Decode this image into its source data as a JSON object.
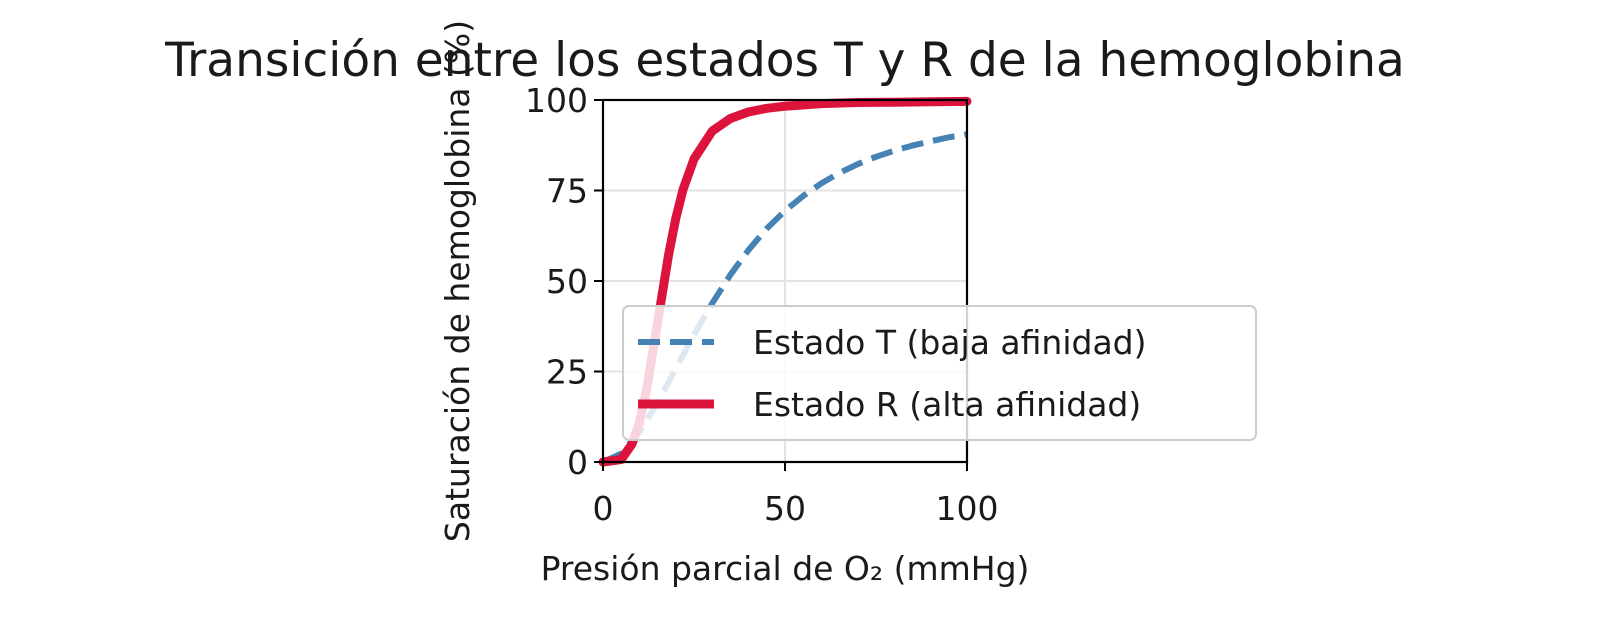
{
  "chart_data": {
    "type": "line",
    "title": "Transición entre los estados T y R de la hemoglobina",
    "xlabel": "Presión parcial de O₂ (mmHg)",
    "ylabel": "Saturación de hemoglobina (%)",
    "xlim": [
      0,
      100
    ],
    "ylim": [
      0,
      100
    ],
    "xticks": [
      0,
      50,
      100
    ],
    "yticks": [
      0,
      25,
      50,
      75,
      100
    ],
    "grid": true,
    "legend_position": "lower-right",
    "series": [
      {
        "name": "Estado T (baja afinidad)",
        "color": "#4682b4",
        "style": "dashed",
        "x": [
          0,
          5,
          10,
          15,
          20,
          25,
          30,
          35,
          40,
          45,
          50,
          55,
          60,
          65,
          70,
          75,
          80,
          85,
          90,
          95,
          100
        ],
        "y": [
          0,
          2.3,
          8.3,
          16.5,
          25.8,
          35.1,
          43.8,
          51.7,
          58.6,
          64.5,
          69.4,
          73.5,
          77.0,
          79.9,
          82.3,
          84.3,
          86.0,
          87.4,
          88.6,
          89.7,
          90.5
        ]
      },
      {
        "name": "Estado R (alta afinidad)",
        "color": "#dc143c",
        "style": "solid",
        "x": [
          0,
          5,
          8,
          10,
          12,
          15,
          18,
          20,
          22,
          25,
          30,
          35,
          40,
          45,
          50,
          60,
          70,
          80,
          90,
          100
        ],
        "y": [
          0,
          0.7,
          5.0,
          10.9,
          20.2,
          38.5,
          57.1,
          67.3,
          75.3,
          83.7,
          91.4,
          94.9,
          96.7,
          97.7,
          98.3,
          99.0,
          99.3,
          99.4,
          99.5,
          99.6
        ]
      }
    ]
  }
}
